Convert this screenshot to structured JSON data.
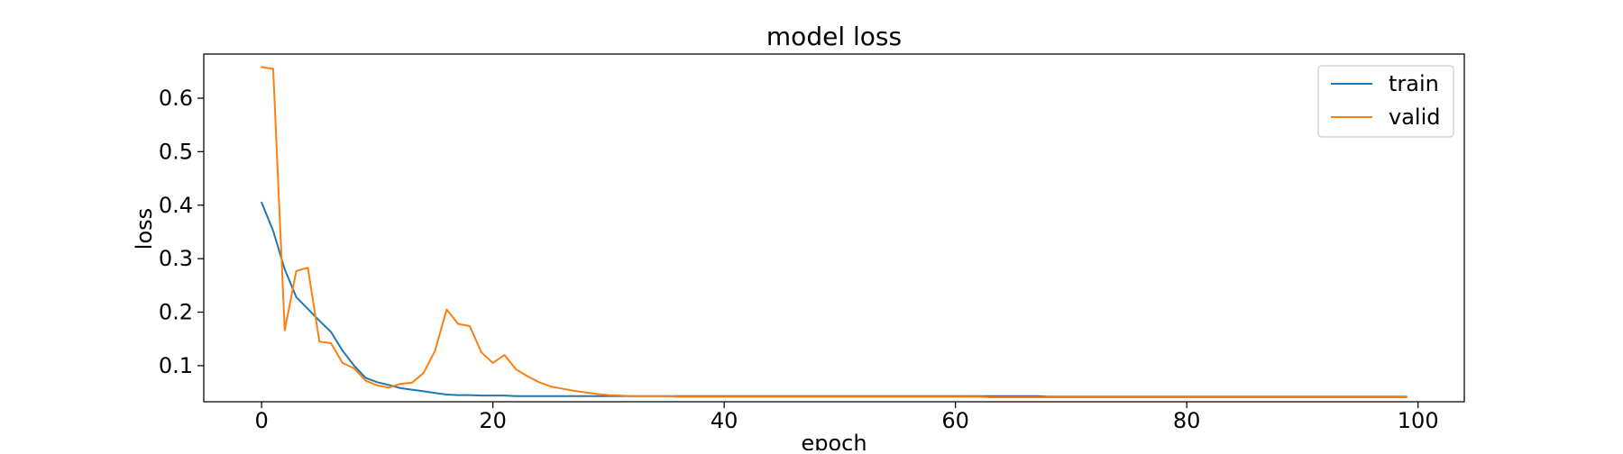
{
  "chart_data": {
    "type": "line",
    "title": "model loss",
    "xlabel": "epoch",
    "ylabel": "loss",
    "xlim": [
      -5,
      104
    ],
    "ylim": [
      0.0325,
      0.6825
    ],
    "xticks": [
      0,
      20,
      40,
      60,
      80,
      100
    ],
    "yticks": [
      0.1,
      0.2,
      0.3,
      0.4,
      0.5,
      0.6
    ],
    "grid": false,
    "legend_position": "top-right",
    "series": [
      {
        "name": "train",
        "color": "#1f77b4",
        "x": [
          0,
          1,
          2,
          3,
          4,
          5,
          6,
          7,
          8,
          9,
          10,
          11,
          12,
          13,
          14,
          15,
          16,
          17,
          18,
          19,
          20,
          21,
          22,
          23,
          24,
          25,
          26,
          27,
          28,
          29,
          30,
          31,
          32,
          33,
          34,
          35,
          36,
          37,
          38,
          39,
          40,
          41,
          42,
          43,
          44,
          45,
          46,
          47,
          48,
          49,
          50,
          51,
          52,
          53,
          54,
          55,
          56,
          57,
          58,
          59,
          60,
          61,
          62,
          63,
          64,
          65,
          66,
          67,
          68,
          69,
          70,
          71,
          72,
          73,
          74,
          75,
          76,
          77,
          78,
          79,
          80,
          81,
          82,
          83,
          84,
          85,
          86,
          87,
          88,
          89,
          90,
          91,
          92,
          93,
          94,
          95,
          96,
          97,
          98,
          99
        ],
        "y": [
          0.405,
          0.352,
          0.28,
          0.228,
          0.206,
          0.184,
          0.163,
          0.128,
          0.1,
          0.077,
          0.069,
          0.064,
          0.058,
          0.055,
          0.052,
          0.049,
          0.046,
          0.045,
          0.045,
          0.044,
          0.044,
          0.044,
          0.043,
          0.043,
          0.043,
          0.043,
          0.043,
          0.043,
          0.043,
          0.043,
          0.043,
          0.043,
          0.043,
          0.043,
          0.043,
          0.043,
          0.043,
          0.043,
          0.043,
          0.043,
          0.043,
          0.043,
          0.043,
          0.043,
          0.043,
          0.043,
          0.043,
          0.043,
          0.043,
          0.043,
          0.043,
          0.043,
          0.043,
          0.043,
          0.043,
          0.043,
          0.043,
          0.043,
          0.043,
          0.043,
          0.043,
          0.043,
          0.043,
          0.043,
          0.043,
          0.043,
          0.043,
          0.043,
          0.042,
          0.042,
          0.042,
          0.042,
          0.042,
          0.042,
          0.042,
          0.042,
          0.042,
          0.042,
          0.042,
          0.042,
          0.042,
          0.042,
          0.042,
          0.042,
          0.042,
          0.042,
          0.042,
          0.042,
          0.042,
          0.042,
          0.042,
          0.042,
          0.042,
          0.042,
          0.042,
          0.042,
          0.042,
          0.042,
          0.042,
          0.042
        ]
      },
      {
        "name": "valid",
        "color": "#ff7f0e",
        "x": [
          0,
          1,
          2,
          3,
          4,
          5,
          6,
          7,
          8,
          9,
          10,
          11,
          12,
          13,
          14,
          15,
          16,
          17,
          18,
          19,
          20,
          21,
          22,
          23,
          24,
          25,
          26,
          27,
          28,
          29,
          30,
          31,
          32,
          33,
          34,
          35,
          36,
          37,
          38,
          39,
          40,
          41,
          42,
          43,
          44,
          45,
          46,
          47,
          48,
          49,
          50,
          51,
          52,
          53,
          54,
          55,
          56,
          57,
          58,
          59,
          60,
          61,
          62,
          63,
          64,
          65,
          66,
          67,
          68,
          69,
          70,
          71,
          72,
          73,
          74,
          75,
          76,
          77,
          78,
          79,
          80,
          81,
          82,
          83,
          84,
          85,
          86,
          87,
          88,
          89,
          90,
          91,
          92,
          93,
          94,
          95,
          96,
          97,
          98,
          99
        ],
        "y": [
          0.658,
          0.655,
          0.166,
          0.277,
          0.283,
          0.145,
          0.142,
          0.105,
          0.095,
          0.072,
          0.063,
          0.059,
          0.066,
          0.068,
          0.086,
          0.128,
          0.205,
          0.178,
          0.174,
          0.125,
          0.105,
          0.12,
          0.093,
          0.08,
          0.069,
          0.061,
          0.057,
          0.053,
          0.05,
          0.047,
          0.045,
          0.044,
          0.043,
          0.043,
          0.043,
          0.043,
          0.042,
          0.042,
          0.042,
          0.042,
          0.042,
          0.042,
          0.042,
          0.042,
          0.042,
          0.042,
          0.042,
          0.042,
          0.042,
          0.042,
          0.042,
          0.042,
          0.042,
          0.042,
          0.042,
          0.042,
          0.042,
          0.042,
          0.042,
          0.042,
          0.042,
          0.042,
          0.042,
          0.041,
          0.041,
          0.041,
          0.041,
          0.041,
          0.041,
          0.041,
          0.041,
          0.041,
          0.041,
          0.041,
          0.041,
          0.041,
          0.041,
          0.041,
          0.041,
          0.041,
          0.041,
          0.041,
          0.041,
          0.041,
          0.041,
          0.041,
          0.041,
          0.041,
          0.041,
          0.041,
          0.041,
          0.041,
          0.041,
          0.041,
          0.041,
          0.041,
          0.041,
          0.041,
          0.041,
          0.041
        ]
      }
    ]
  }
}
